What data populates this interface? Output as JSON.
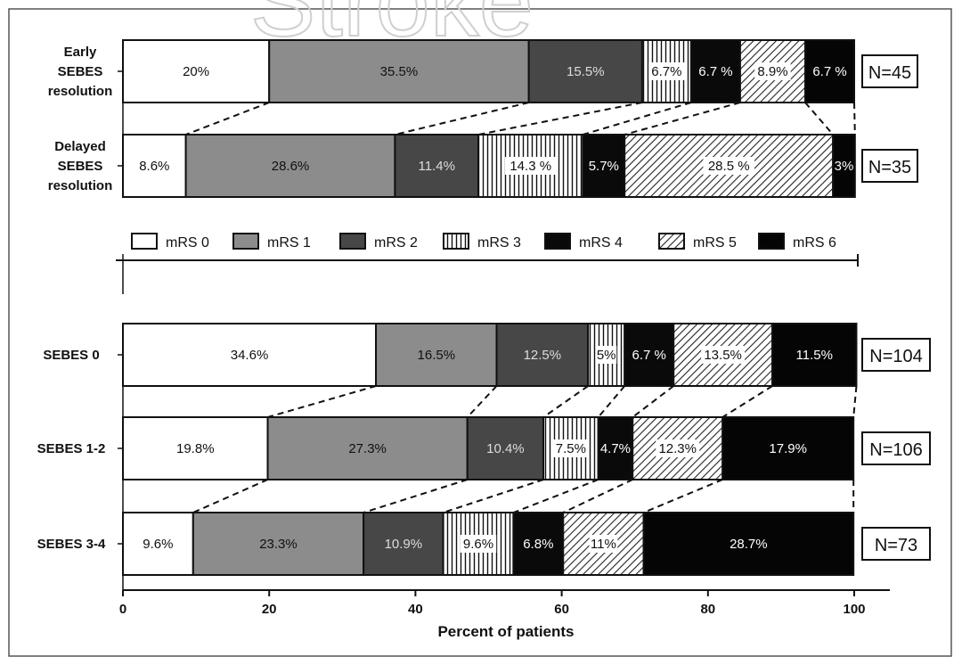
{
  "chart_data": {
    "type": "bar",
    "orientation": "horizontal",
    "stacked": true,
    "xlabel": "Percent of patients",
    "xlim": [
      0,
      100
    ],
    "xticks": [
      "0",
      "20",
      "40",
      "60",
      "80",
      "100"
    ],
    "legend": {
      "placement": "middle",
      "entries": [
        "mRS 0",
        "mRS 1",
        "mRS 2",
        "mRS 3",
        "mRS 4",
        "mRS 5",
        "mRS 6"
      ]
    },
    "groups": [
      {
        "name": "resolution",
        "rows": [
          {
            "label": [
              "Early",
              "SEBES",
              "resolution"
            ],
            "n": "N=45",
            "values": [
              20,
              35.5,
              15.5,
              6.7,
              6.7,
              8.9,
              6.7
            ],
            "labels": [
              "20%",
              "35.5%",
              "15.5%",
              "6.7%",
              "6.7 %",
              "8.9%",
              "6.7 %"
            ]
          },
          {
            "label": [
              "Delayed",
              "SEBES",
              "resolution"
            ],
            "n": "N=35",
            "values": [
              8.6,
              28.6,
              11.4,
              14.3,
              5.7,
              28.5,
              3
            ],
            "labels": [
              "8.6%",
              "28.6%",
              "11.4%",
              "14.3 %",
              "5.7%",
              "28.5 %",
              "3%"
            ]
          }
        ]
      },
      {
        "name": "sebes",
        "rows": [
          {
            "label": [
              "SEBES 0"
            ],
            "n": "N=104",
            "values": [
              34.6,
              16.5,
              12.5,
              5,
              6.7,
              13.5,
              11.5
            ],
            "labels": [
              "34.6%",
              "16.5%",
              "12.5%",
              "5%",
              "6.7 %",
              "13.5%",
              "11.5%"
            ]
          },
          {
            "label": [
              "SEBES 1-2"
            ],
            "n": "N=106",
            "values": [
              19.8,
              27.3,
              10.4,
              7.5,
              4.7,
              12.3,
              17.9
            ],
            "labels": [
              "19.8%",
              "27.3%",
              "10.4%",
              "7.5%",
              "4.7%",
              "12.3%",
              "17.9%"
            ]
          },
          {
            "label": [
              "SEBES 3-4"
            ],
            "n": "N=73",
            "values": [
              9.6,
              23.3,
              10.9,
              9.6,
              6.8,
              11,
              28.7
            ],
            "labels": [
              "9.6%",
              "23.3%",
              "10.9%",
              "9.6%",
              "6.8%",
              "11%",
              "28.7%"
            ]
          }
        ]
      }
    ],
    "watermark": "Stroke"
  },
  "colors": {
    "mrs0": "#ffffff",
    "mrs1": "#8c8c8c",
    "mrs2": "#474747",
    "mrs3": "#ffffff",
    "mrs4": "#0a0a0a",
    "mrs5": "#ffffff",
    "mrs6": "#050505",
    "frame": "#555555",
    "ink": "#111111"
  }
}
